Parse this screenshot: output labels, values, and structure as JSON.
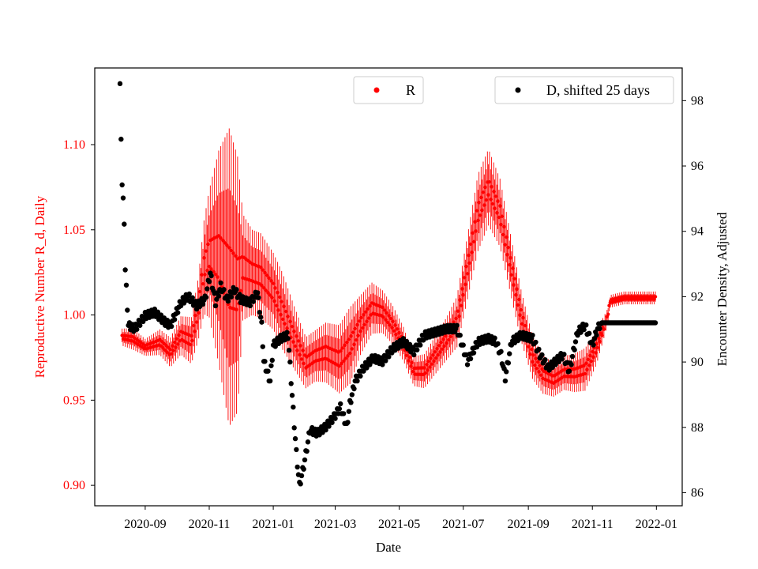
{
  "chart_data": {
    "type": "scatter",
    "title": "",
    "xlabel": "Date",
    "ylabel_left": "Reproductive Number R_d, Daily",
    "ylabel_right": "Encounter Density, Adjusted",
    "x_ticks": [
      "2020-09",
      "2020-11",
      "2021-01",
      "2021-03",
      "2021-05",
      "2021-07",
      "2021-09",
      "2021-11",
      "2022-01"
    ],
    "y_left_ticks": [
      "0.90",
      "0.95",
      "1.00",
      "1.05",
      "1.10"
    ],
    "y_right_ticks": [
      "86",
      "88",
      "90",
      "92",
      "94",
      "96",
      "98"
    ],
    "ylim_left": [
      0.888,
      1.145
    ],
    "ylim_right": [
      85.6,
      99.0
    ],
    "colors": {
      "R": "#ff0000",
      "D": "#000000",
      "left_axis": "#ff0000"
    },
    "legend": [
      {
        "label": "R",
        "color": "#ff0000",
        "placement": "top-center"
      },
      {
        "label": "D, shifted 25 days",
        "color": "#000000",
        "placement": "top-right"
      }
    ],
    "series": [
      {
        "name": "R",
        "axis": "left",
        "marker": "dot-with-errorbars",
        "x": [
          "2020-08-10",
          "2020-08-20",
          "2020-09-01",
          "2020-09-15",
          "2020-09-25",
          "2020-10-05",
          "2020-10-15",
          "2020-10-22",
          "2020-10-27",
          "2020-11-01",
          "2020-11-10",
          "2020-11-20",
          "2020-11-28",
          "2020-12-03",
          "2020-12-12",
          "2020-12-20",
          "2021-01-01",
          "2021-01-10",
          "2021-01-20",
          "2021-02-01",
          "2021-02-10",
          "2021-02-20",
          "2021-03-05",
          "2021-03-15",
          "2021-03-25",
          "2021-04-05",
          "2021-04-15",
          "2021-04-25",
          "2021-05-05",
          "2021-05-15",
          "2021-05-25",
          "2021-06-05",
          "2021-06-15",
          "2021-06-25",
          "2021-07-05",
          "2021-07-15",
          "2021-07-25",
          "2021-08-05",
          "2021-08-15",
          "2021-08-25",
          "2021-09-05",
          "2021-09-15",
          "2021-09-25",
          "2021-10-05",
          "2021-10-15",
          "2021-10-25",
          "2021-11-05",
          "2021-11-15",
          "2021-11-18",
          "2021-12-01",
          "2021-12-15",
          "2021-12-31"
        ],
        "values": [
          0.987,
          0.986,
          0.981,
          0.984,
          0.978,
          0.988,
          0.985,
          1.005,
          1.028,
          1.036,
          1.034,
          1.022,
          1.018,
          1.028,
          1.025,
          1.023,
          1.014,
          1.002,
          0.988,
          0.972,
          0.976,
          0.978,
          0.974,
          0.982,
          0.994,
          1.004,
          1.002,
          0.994,
          0.983,
          0.967,
          0.967,
          0.977,
          0.986,
          0.996,
          1.028,
          1.06,
          1.075,
          1.06,
          1.03,
          1.0,
          0.975,
          0.965,
          0.962,
          0.966,
          0.966,
          0.968,
          0.981,
          0.998,
          1.008,
          1.01,
          1.01,
          1.01
        ],
        "errors": [
          0.004,
          0.005,
          0.004,
          0.006,
          0.007,
          0.009,
          0.011,
          0.015,
          0.022,
          0.03,
          0.05,
          0.07,
          0.06,
          0.025,
          0.02,
          0.02,
          0.018,
          0.018,
          0.015,
          0.012,
          0.012,
          0.014,
          0.016,
          0.018,
          0.014,
          0.012,
          0.01,
          0.009,
          0.008,
          0.007,
          0.008,
          0.009,
          0.01,
          0.012,
          0.015,
          0.018,
          0.018,
          0.016,
          0.014,
          0.012,
          0.01,
          0.009,
          0.008,
          0.008,
          0.009,
          0.01,
          0.008,
          0.004,
          0.003,
          0.003,
          0.003,
          0.003
        ]
      },
      {
        "name": "D, shifted 25 days",
        "axis": "right",
        "marker": "dot",
        "x": [
          "2020-08-08",
          "2020-08-09",
          "2020-08-10",
          "2020-08-11",
          "2020-08-12",
          "2020-08-13",
          "2020-08-16",
          "2020-08-22",
          "2020-09-01",
          "2020-09-10",
          "2020-09-20",
          "2020-09-25",
          "2020-10-05",
          "2020-10-12",
          "2020-10-20",
          "2020-10-28",
          "2020-11-02",
          "2020-11-07",
          "2020-11-12",
          "2020-11-18",
          "2020-11-25",
          "2020-12-01",
          "2020-12-10",
          "2020-12-17",
          "2020-12-21",
          "2020-12-23",
          "2020-12-26",
          "2020-12-29",
          "2021-01-01",
          "2021-01-08",
          "2021-01-15",
          "2021-01-20",
          "2021-01-23",
          "2021-01-26",
          "2021-01-30",
          "2021-02-05",
          "2021-02-12",
          "2021-02-20",
          "2021-02-28",
          "2021-03-06",
          "2021-03-12",
          "2021-03-15",
          "2021-03-20",
          "2021-03-28",
          "2021-04-06",
          "2021-04-15",
          "2021-04-25",
          "2021-05-05",
          "2021-05-15",
          "2021-05-25",
          "2021-06-05",
          "2021-06-15",
          "2021-06-25",
          "2021-07-05",
          "2021-07-15",
          "2021-07-25",
          "2021-08-01",
          "2021-08-06",
          "2021-08-10",
          "2021-08-16",
          "2021-08-25",
          "2021-09-05",
          "2021-09-12",
          "2021-09-20",
          "2021-09-27",
          "2021-10-04",
          "2021-10-10",
          "2021-10-18",
          "2021-10-25",
          "2021-11-01",
          "2021-11-06",
          "2021-11-10",
          "2021-11-20",
          "2021-12-01",
          "2021-12-15",
          "2021-12-31"
        ],
        "values": [
          98.4,
          96.9,
          95.4,
          94.9,
          94.3,
          92.8,
          91.1,
          91.0,
          91.4,
          91.5,
          91.2,
          91.1,
          91.8,
          92.0,
          91.7,
          91.9,
          92.7,
          91.8,
          92.3,
          91.9,
          92.2,
          91.9,
          91.8,
          92.1,
          91.1,
          90.0,
          89.7,
          89.4,
          90.5,
          90.7,
          90.8,
          88.5,
          87.2,
          86.2,
          86.8,
          87.9,
          87.8,
          88.0,
          88.3,
          88.6,
          88.0,
          88.7,
          89.4,
          89.8,
          90.1,
          90.0,
          90.4,
          90.6,
          90.3,
          90.8,
          90.9,
          91.0,
          91.0,
          90.0,
          90.6,
          90.7,
          90.6,
          90.2,
          89.5,
          90.6,
          90.8,
          90.7,
          90.2,
          89.8,
          90.0,
          90.2,
          89.7,
          90.9,
          91.1,
          90.5,
          91.0,
          91.2,
          91.2,
          91.2,
          91.2,
          91.2
        ]
      }
    ]
  }
}
